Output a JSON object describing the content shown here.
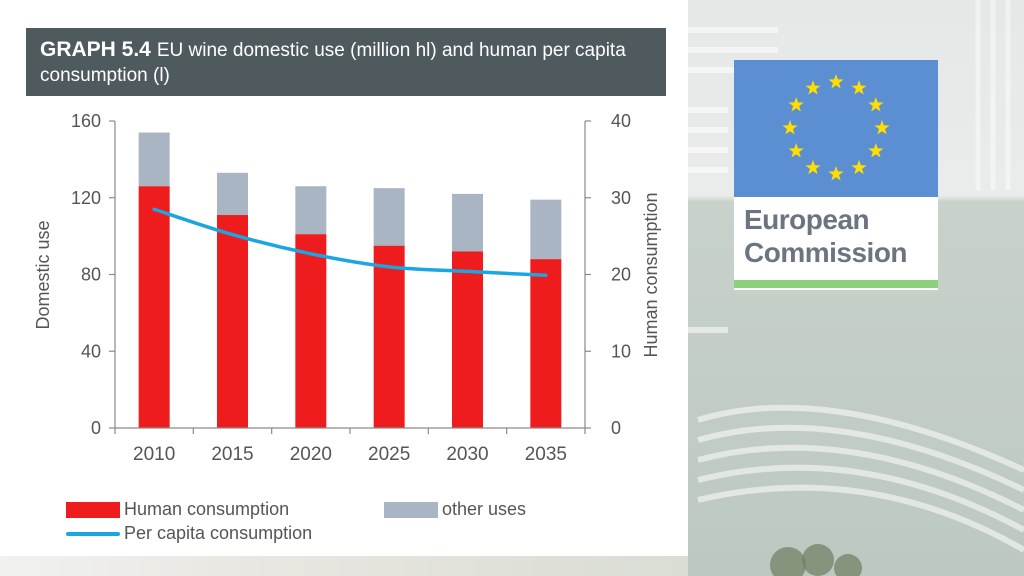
{
  "title": {
    "number": "GRAPH 5.4",
    "text": "EU wine domestic use (million hl) and human per capita consumption (l)"
  },
  "logo": {
    "line1": "European",
    "line2": "Commission"
  },
  "colors": {
    "human": "#ee1c1c",
    "other": "#aab5c4",
    "per_capita": "#1aa6e2",
    "title_bg": "#4f5a5f",
    "eu_blue": "#5b8fd1",
    "eu_star": "#ffdd00"
  },
  "chart_data": {
    "type": "bar",
    "stacked": true,
    "categories": [
      "2010",
      "2015",
      "2020",
      "2025",
      "2030",
      "2035"
    ],
    "series": [
      {
        "name": "Human consumption",
        "type": "bar",
        "axis": "left",
        "values": [
          126,
          111,
          101,
          95,
          92,
          88
        ]
      },
      {
        "name": "other uses",
        "type": "bar",
        "axis": "left",
        "values": [
          28,
          22,
          25,
          30,
          30,
          31
        ]
      },
      {
        "name": "Per capita consumption",
        "type": "line",
        "axis": "right",
        "values": [
          28.5,
          25.2,
          22.7,
          21.0,
          20.4,
          19.9
        ]
      }
    ],
    "ylabel": "Domestic use",
    "y2label": "Human consumption",
    "ylim": [
      0,
      160
    ],
    "y2lim": [
      0,
      40
    ],
    "yticks": [
      "0",
      "40",
      "80",
      "120",
      "160"
    ],
    "y2ticks": [
      "0",
      "10",
      "20",
      "30",
      "40"
    ],
    "grid": false,
    "legend_position": "bottom"
  }
}
